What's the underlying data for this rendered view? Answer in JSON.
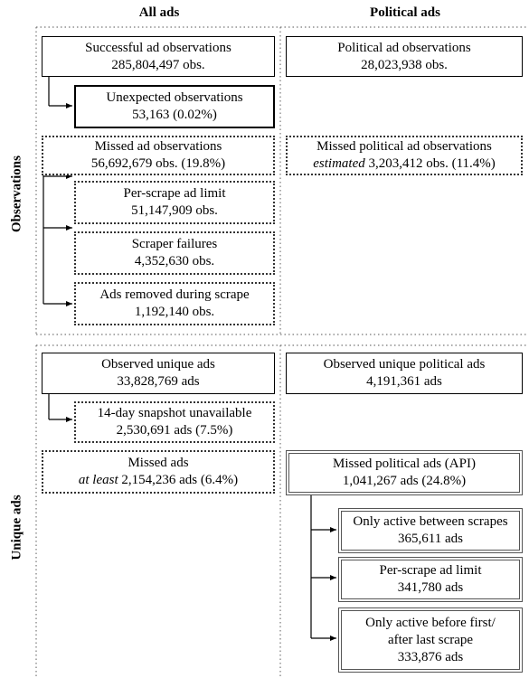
{
  "headers": {
    "all_ads": "All ads",
    "political_ads": "Political ads"
  },
  "sections": {
    "observations": "Observations",
    "unique_ads": "Unique ads"
  },
  "observations": {
    "successful": {
      "title": "Successful ad observations",
      "value": "285,804,497 obs."
    },
    "political": {
      "title": "Political ad observations",
      "value": "28,023,938 obs."
    },
    "unexpected": {
      "title": "Unexpected observations",
      "value": "53,163 (0.02%)"
    },
    "missed": {
      "title": "Missed ad observations",
      "value": "56,692,679 obs.  (19.8%)"
    },
    "missed_political": {
      "title": "Missed political ad observations",
      "qualifier": "estimated",
      "value": " 3,203,412 obs. (11.4%)"
    },
    "per_scrape_limit": {
      "title": "Per-scrape ad limit",
      "value": "51,147,909 obs."
    },
    "scraper_failures": {
      "title": "Scraper failures",
      "value": "4,352,630 obs."
    },
    "removed_during": {
      "title": "Ads removed during scrape",
      "value": "1,192,140 obs."
    }
  },
  "unique": {
    "observed": {
      "title": "Observed unique ads",
      "value": "33,828,769 ads"
    },
    "observed_political": {
      "title": "Observed unique political ads",
      "value": "4,191,361 ads"
    },
    "snapshot_unavailable": {
      "title": "14-day snapshot unavailable",
      "value": "2,530,691 ads (7.5%)"
    },
    "missed": {
      "title": "Missed ads",
      "qualifier": "at least",
      "value": " 2,154,236 ads (6.4%)"
    },
    "missed_political": {
      "title": "Missed political ads (API)",
      "value": "1,041,267 ads (24.8%)"
    },
    "only_between": {
      "title": "Only active between scrapes",
      "value": "365,611 ads"
    },
    "per_scrape_limit": {
      "title": "Per-scrape ad limit",
      "value": "341,780 ads"
    },
    "before_after": {
      "line1": "Only active before first/",
      "line2": "after last scrape",
      "value": "333,876 ads"
    }
  }
}
